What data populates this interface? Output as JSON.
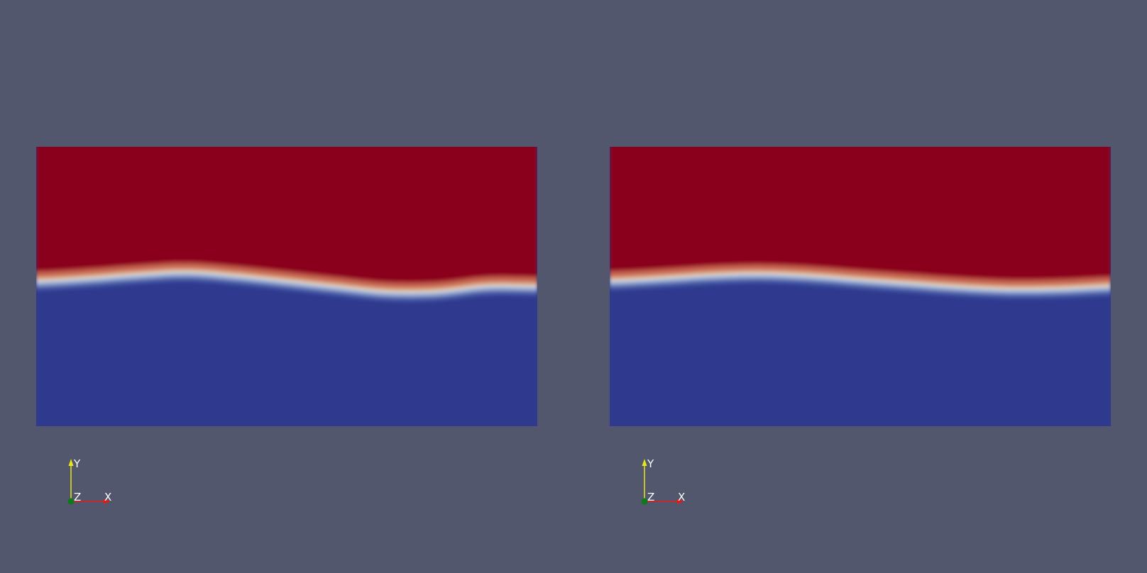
{
  "colors": {
    "background": "#52576e",
    "upper_phase": "#8a001d",
    "lower_phase": "#2f3a8e",
    "interface_mid": "#d8cfc8",
    "axis_x": "#e11b1b",
    "axis_y": "#e8e61a",
    "axis_z": "#0c7a1a"
  },
  "views": [
    {
      "name": "left-view",
      "interface_profile": [
        0.488,
        0.478,
        0.465,
        0.456,
        0.469,
        0.488,
        0.508,
        0.526,
        0.525,
        0.506,
        0.507
      ]
    },
    {
      "name": "right-view",
      "interface_profile": [
        0.487,
        0.478,
        0.467,
        0.462,
        0.469,
        0.483,
        0.496,
        0.509,
        0.517,
        0.515,
        0.507
      ]
    }
  ],
  "axes": {
    "x_label": "X",
    "y_label": "Y",
    "z_label": "Z"
  }
}
